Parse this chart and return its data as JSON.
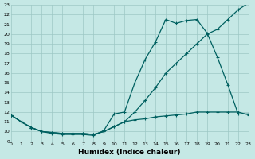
{
  "xlabel": "Humidex (Indice chaleur)",
  "bg_color": "#c5e8e5",
  "grid_color": "#9dc8c5",
  "line_color": "#006060",
  "line1_x": [
    0,
    1,
    2,
    3,
    4,
    5,
    6,
    7,
    8,
    9,
    10,
    11,
    12,
    13,
    14,
    15,
    16,
    17,
    18,
    19,
    20,
    21,
    22,
    23
  ],
  "line1_y": [
    11.7,
    11.0,
    10.4,
    10.0,
    9.8,
    9.7,
    9.7,
    9.7,
    9.6,
    10.1,
    11.8,
    12.0,
    15.0,
    17.4,
    19.2,
    21.5,
    21.1,
    21.4,
    21.5,
    20.1,
    17.6,
    14.8,
    11.8,
    11.8
  ],
  "line2_x": [
    0,
    1,
    2,
    3,
    4,
    5,
    6,
    7,
    8,
    9,
    10,
    11,
    12,
    13,
    14,
    15,
    16,
    17,
    18,
    19,
    20,
    21,
    22,
    23
  ],
  "line2_y": [
    11.7,
    11.0,
    10.4,
    10.0,
    9.9,
    9.8,
    9.8,
    9.8,
    9.7,
    10.0,
    10.5,
    11.0,
    12.0,
    13.2,
    14.5,
    16.0,
    17.0,
    18.0,
    19.0,
    20.0,
    20.5,
    21.5,
    22.5,
    23.2
  ],
  "line3_x": [
    0,
    1,
    2,
    3,
    4,
    5,
    6,
    7,
    8,
    9,
    10,
    11,
    12,
    13,
    14,
    15,
    16,
    17,
    18,
    19,
    20,
    21,
    22,
    23
  ],
  "line3_y": [
    11.7,
    11.0,
    10.4,
    10.0,
    9.9,
    9.8,
    9.8,
    9.8,
    9.7,
    10.0,
    10.5,
    11.0,
    11.2,
    11.3,
    11.5,
    11.6,
    11.7,
    11.8,
    12.0,
    12.0,
    12.0,
    12.0,
    12.0,
    11.7
  ],
  "xlim": [
    0,
    23
  ],
  "ylim": [
    9,
    23
  ],
  "yticks": [
    9,
    10,
    11,
    12,
    13,
    14,
    15,
    16,
    17,
    18,
    19,
    20,
    21,
    22,
    23
  ],
  "xticks": [
    0,
    1,
    2,
    3,
    4,
    5,
    6,
    7,
    8,
    9,
    10,
    11,
    12,
    13,
    14,
    15,
    16,
    17,
    18,
    19,
    20,
    21,
    22,
    23
  ]
}
